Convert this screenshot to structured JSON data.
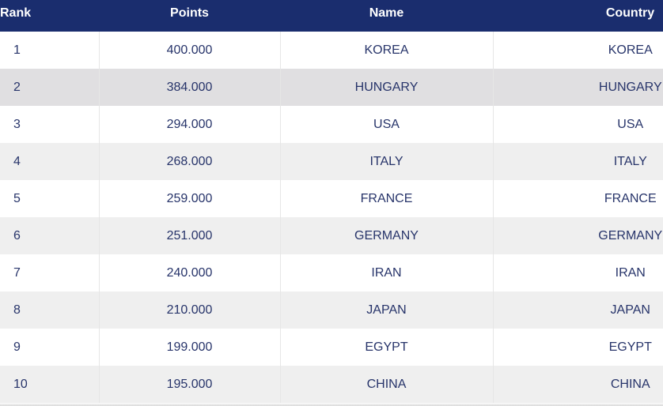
{
  "colors": {
    "header_bg": "#1a2d6e",
    "text": "#27346a",
    "row_alt": "#efefef",
    "row_highlight": "#e0dfe1"
  },
  "headers": {
    "rank": "Rank",
    "points": "Points",
    "name": "Name",
    "country": "Country"
  },
  "rows": [
    {
      "rank": "1",
      "points": "400.000",
      "name": "KOREA",
      "country": "KOREA"
    },
    {
      "rank": "2",
      "points": "384.000",
      "name": "HUNGARY",
      "country": "HUNGARY"
    },
    {
      "rank": "3",
      "points": "294.000",
      "name": "USA",
      "country": "USA"
    },
    {
      "rank": "4",
      "points": "268.000",
      "name": "ITALY",
      "country": "ITALY"
    },
    {
      "rank": "5",
      "points": "259.000",
      "name": "FRANCE",
      "country": "FRANCE"
    },
    {
      "rank": "6",
      "points": "251.000",
      "name": "GERMANY",
      "country": "GERMANY"
    },
    {
      "rank": "7",
      "points": "240.000",
      "name": "IRAN",
      "country": "IRAN"
    },
    {
      "rank": "8",
      "points": "210.000",
      "name": "JAPAN",
      "country": "JAPAN"
    },
    {
      "rank": "9",
      "points": "199.000",
      "name": "EGYPT",
      "country": "EGYPT"
    },
    {
      "rank": "10",
      "points": "195.000",
      "name": "CHINA",
      "country": "CHINA"
    }
  ]
}
